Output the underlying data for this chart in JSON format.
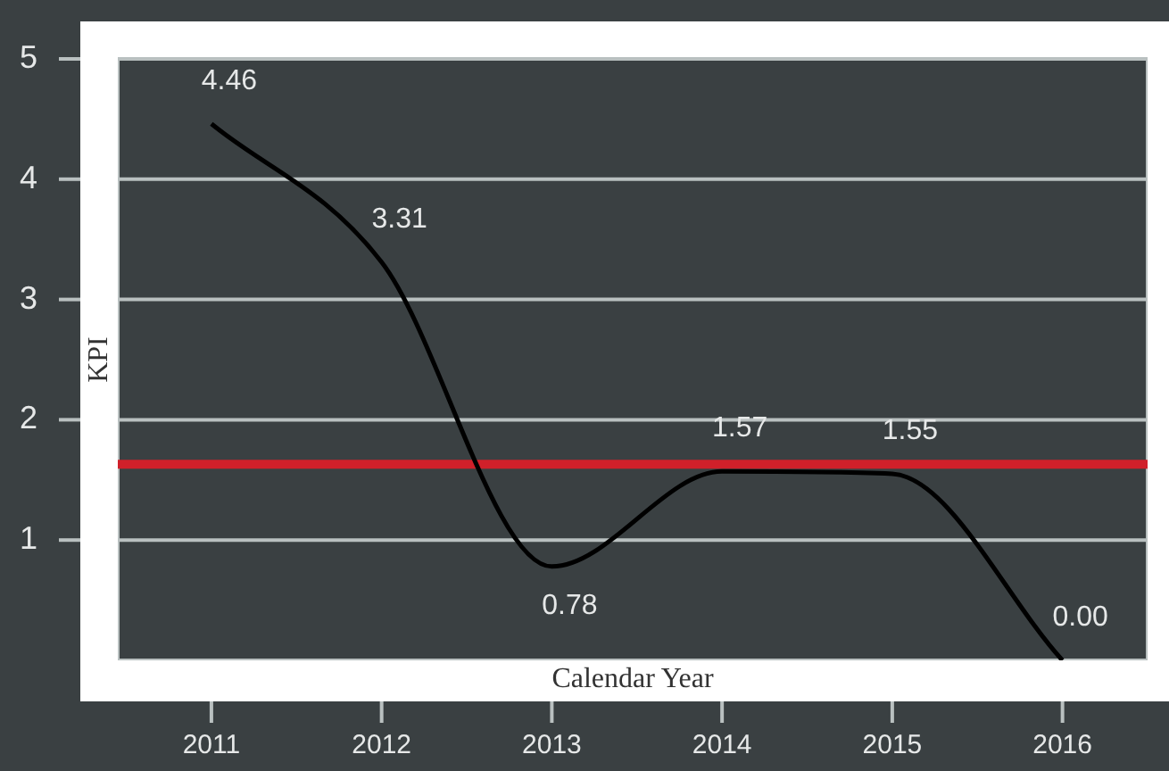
{
  "chart_data": {
    "type": "line",
    "xlabel": "Calendar Year",
    "ylabel": "KPI",
    "x": [
      2011,
      2012,
      2013,
      2014,
      2015,
      2016
    ],
    "series": [
      {
        "color": "#000000",
        "values": [
          4.46,
          3.31,
          0.78,
          1.57,
          1.55,
          0.0
        ],
        "value_labels": [
          "4.46",
          "3.31",
          "0.78",
          "1.57",
          "1.55",
          "0.00"
        ]
      }
    ],
    "xlim": [
      2010.45,
      2016.5
    ],
    "ylim": [
      0,
      5
    ],
    "xticks": [
      2011,
      2012,
      2013,
      2014,
      2015,
      2016
    ],
    "yticks": [
      1,
      2,
      3,
      4,
      5
    ],
    "ref_lines": [
      {
        "axis": "y",
        "value": 1.63,
        "color": "#d0202a"
      }
    ],
    "grid": "y",
    "legend": false,
    "marker": "none",
    "line_style": "solid"
  }
}
